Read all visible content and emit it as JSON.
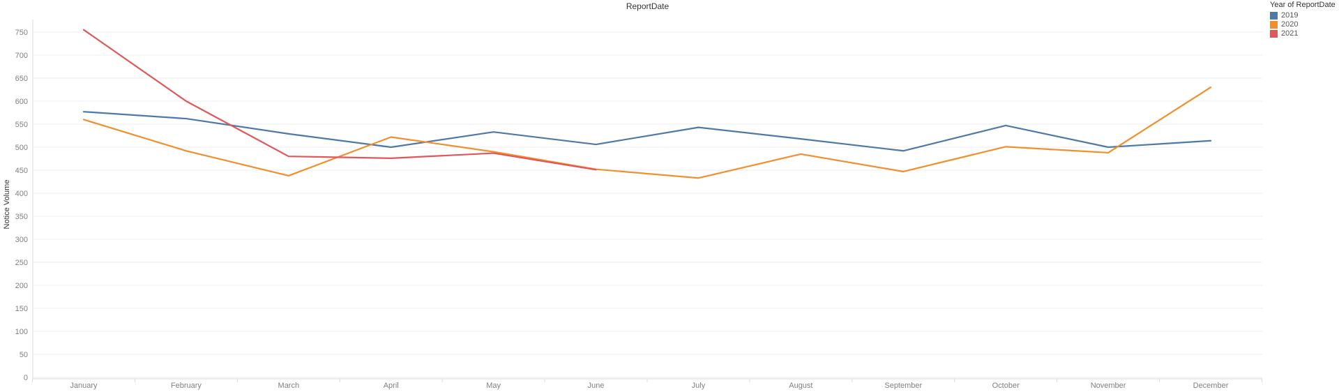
{
  "title": "ReportDate",
  "y_axis": {
    "title": "Notice Volume",
    "ticks": [
      0,
      50,
      100,
      150,
      200,
      250,
      300,
      350,
      400,
      450,
      500,
      550,
      600,
      650,
      700,
      750
    ]
  },
  "x_axis": {
    "labels": [
      "January",
      "February",
      "March",
      "April",
      "May",
      "June",
      "July",
      "August",
      "September",
      "October",
      "November",
      "December"
    ]
  },
  "legend": {
    "title": "Year of ReportDate",
    "items": [
      {
        "label": "2019",
        "color": "#4e79a7"
      },
      {
        "label": "2020",
        "color": "#f28e2b"
      },
      {
        "label": "2021",
        "color": "#e15759"
      }
    ]
  },
  "colors": {
    "grid": "#ededed",
    "axis": "#d9d9d9",
    "tick_label": "#7f7f7f",
    "title_text": "#333333"
  },
  "chart_data": {
    "type": "line",
    "title": "ReportDate",
    "xlabel": "",
    "ylabel": "Notice Volume",
    "x": [
      "January",
      "February",
      "March",
      "April",
      "May",
      "June",
      "July",
      "August",
      "September",
      "October",
      "November",
      "December"
    ],
    "ylim": [
      0,
      750
    ],
    "ytick_step": 50,
    "grid": true,
    "legend_position": "top-right",
    "series": [
      {
        "name": "2019",
        "color": "#4e79a7",
        "values": [
          577,
          562,
          529,
          500,
          533,
          506,
          543,
          518,
          492,
          547,
          500,
          514
        ]
      },
      {
        "name": "2020",
        "color": "#f28e2b",
        "values": [
          560,
          492,
          438,
          522,
          490,
          452,
          433,
          485,
          447,
          501,
          488,
          630
        ]
      },
      {
        "name": "2021",
        "color": "#e15759",
        "values": [
          755,
          600,
          480,
          476,
          487,
          451,
          null,
          null,
          null,
          null,
          null,
          null
        ]
      }
    ]
  }
}
